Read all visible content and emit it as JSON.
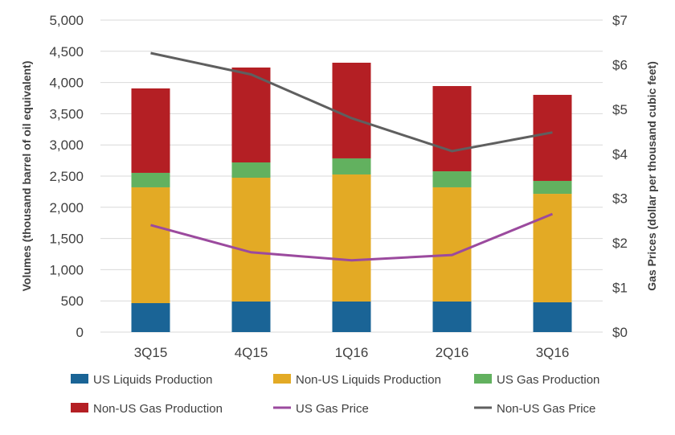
{
  "chart_data": {
    "type": "bar",
    "stacked": true,
    "categories": [
      "3Q15",
      "4Q15",
      "1Q16",
      "2Q16",
      "3Q16"
    ],
    "ylabel": "Volumes (thousand barrel of oil equivalent)",
    "y2label": "Gas Prices (dollar per thousand cubic feet)",
    "ylim": [
      0,
      5000
    ],
    "y2lim": [
      0,
      7
    ],
    "yticks": [
      "0",
      "500",
      "1,000",
      "1,500",
      "2,000",
      "2,500",
      "3,000",
      "3,500",
      "4,000",
      "4,500",
      "5,000"
    ],
    "y2ticks": [
      "$0",
      "$1",
      "$2",
      "$3",
      "$4",
      "$5",
      "$6",
      "$7"
    ],
    "grid": true,
    "legend_position": "bottom",
    "series": [
      {
        "name": "US Liquids Production",
        "kind": "bar",
        "axis": "left",
        "color": "#1a6496",
        "values": [
          464,
          490,
          490,
          490,
          477
        ]
      },
      {
        "name": "Non-US Liquids Production",
        "kind": "bar",
        "axis": "left",
        "color": "#e3aa25",
        "values": [
          1856,
          1984,
          2036,
          1830,
          1739
        ]
      },
      {
        "name": "US Gas Production",
        "kind": "bar",
        "axis": "left",
        "color": "#62b15f",
        "values": [
          232,
          245,
          258,
          257,
          207
        ]
      },
      {
        "name": "Non-US Gas Production",
        "kind": "bar",
        "axis": "left",
        "color": "#b41f24",
        "values": [
          1353,
          1521,
          1533,
          1366,
          1379
        ]
      },
      {
        "name": "US Gas Price",
        "kind": "line",
        "axis": "right",
        "color": "#9b4a9e",
        "values": [
          2.4,
          1.79,
          1.61,
          1.73,
          2.65
        ]
      },
      {
        "name": "Non-US Gas Price",
        "kind": "line",
        "axis": "right",
        "color": "#5f5f5f",
        "values": [
          6.26,
          5.78,
          4.8,
          4.06,
          4.48
        ]
      }
    ]
  }
}
